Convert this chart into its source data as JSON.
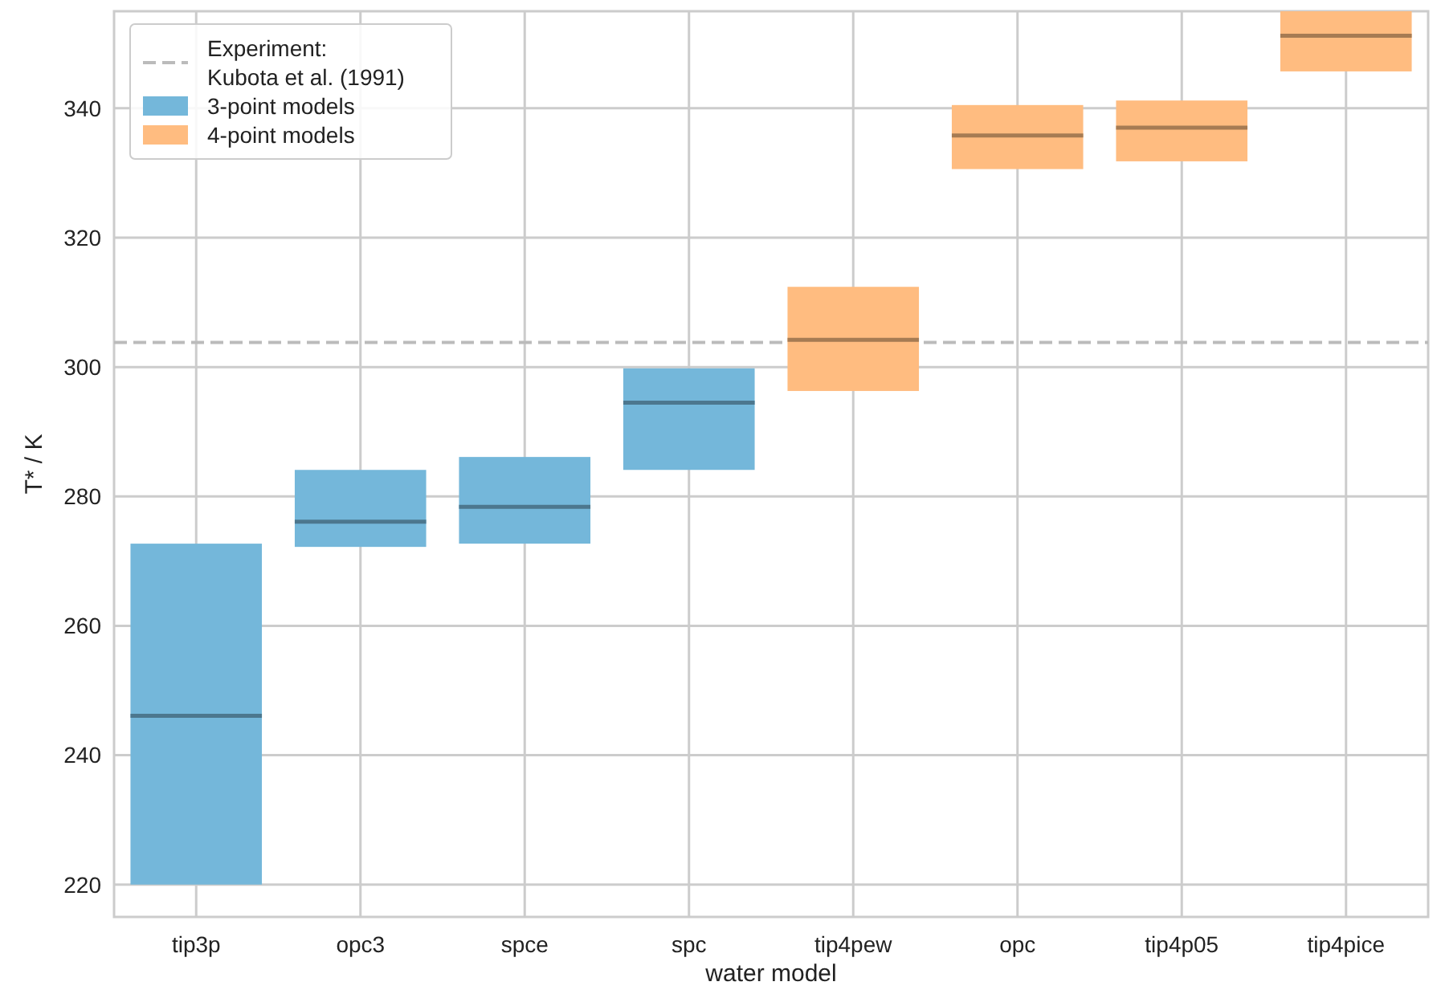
{
  "chart_data": {
    "type": "box",
    "xlabel": "water model",
    "ylabel": "T* / K",
    "categories": [
      "tip3p",
      "opc3",
      "spce",
      "spc",
      "tip4pew",
      "opc",
      "tip4p05",
      "tip4pice"
    ],
    "series": [
      {
        "name": "3-point models",
        "color": "#74b7da",
        "boxes": [
          {
            "low": 220,
            "q1": 220,
            "median": 246.1,
            "q3": 272.7,
            "high": 272.7
          },
          {
            "low": 272.2,
            "q1": 272.2,
            "median": 276.1,
            "q3": 284.1,
            "high": 284.1
          },
          {
            "low": 272.7,
            "q1": 272.7,
            "median": 278.4,
            "q3": 286.1,
            "high": 286.1
          },
          {
            "low": 284.1,
            "q1": 284.1,
            "median": 294.5,
            "q3": 299.8,
            "high": 299.8
          },
          null,
          null,
          null,
          null
        ]
      },
      {
        "name": "4-point models",
        "color": "#ffbc80",
        "boxes": [
          null,
          null,
          null,
          null,
          {
            "low": 296.3,
            "q1": 296.3,
            "median": 304.2,
            "q3": 312.4,
            "high": 312.4
          },
          {
            "low": 330.6,
            "q1": 330.6,
            "median": 335.8,
            "q3": 340.5,
            "high": 340.5
          },
          {
            "low": 331.8,
            "q1": 331.8,
            "median": 337.0,
            "q3": 341.2,
            "high": 341.2
          },
          {
            "low": 345.7,
            "q1": 345.7,
            "median": 351.2,
            "q3": 355,
            "high": 355
          }
        ]
      }
    ],
    "ref_lines": [
      {
        "axis": "y",
        "value": 303.8,
        "label": "Experiment:\nKubota et al. (1991)",
        "color": "#bbbbbb",
        "line_style": "dashed"
      }
    ],
    "ylim": [
      215,
      355
    ],
    "yticks": [
      220,
      240,
      260,
      280,
      300,
      320,
      340
    ],
    "grid": true,
    "legend": "top left"
  }
}
